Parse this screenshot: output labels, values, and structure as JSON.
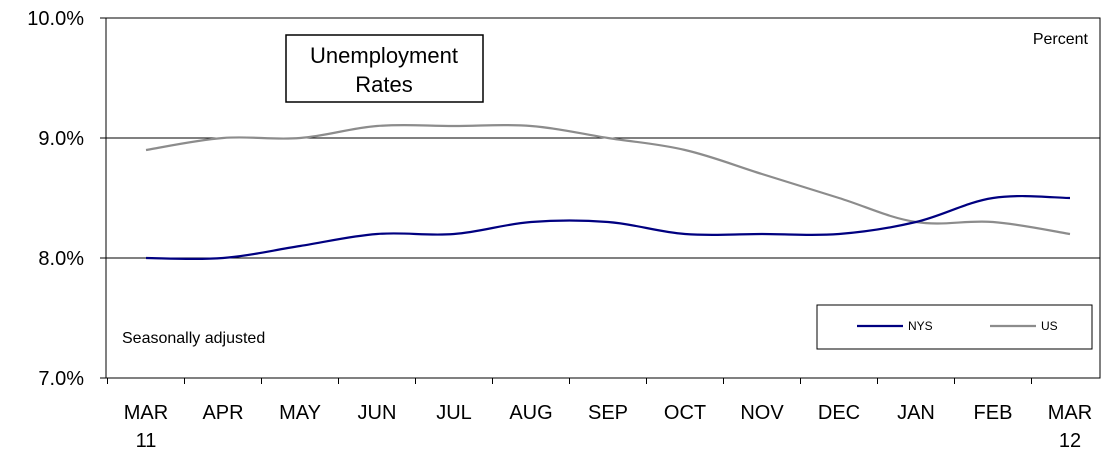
{
  "chart_data": {
    "type": "line",
    "title": "Unemployment Rates",
    "unit_label": "Percent",
    "note": "Seasonally adjusted",
    "categories": [
      [
        "MAR",
        "11"
      ],
      [
        "APR",
        ""
      ],
      [
        "MAY",
        ""
      ],
      [
        "JUN",
        ""
      ],
      [
        "JUL",
        ""
      ],
      [
        "AUG",
        ""
      ],
      [
        "SEP",
        ""
      ],
      [
        "OCT",
        ""
      ],
      [
        "NOV",
        ""
      ],
      [
        "DEC",
        ""
      ],
      [
        "JAN",
        ""
      ],
      [
        "FEB",
        ""
      ],
      [
        "MAR",
        "12"
      ]
    ],
    "y_ticks": [
      "7.0%",
      "8.0%",
      "9.0%",
      "10.0%"
    ],
    "ylim": [
      7.0,
      10.0
    ],
    "grid": "horizontal",
    "legend_position": "bottom-right",
    "series": [
      {
        "name": "NYS",
        "color": "#000080",
        "values": [
          8.0,
          8.0,
          8.1,
          8.2,
          8.2,
          8.3,
          8.3,
          8.2,
          8.2,
          8.2,
          8.3,
          8.5,
          8.5
        ]
      },
      {
        "name": "US",
        "color": "#8c8c8c",
        "values": [
          8.9,
          9.0,
          9.0,
          9.1,
          9.1,
          9.1,
          9.0,
          8.9,
          8.7,
          8.5,
          8.3,
          8.3,
          8.2
        ]
      }
    ]
  }
}
